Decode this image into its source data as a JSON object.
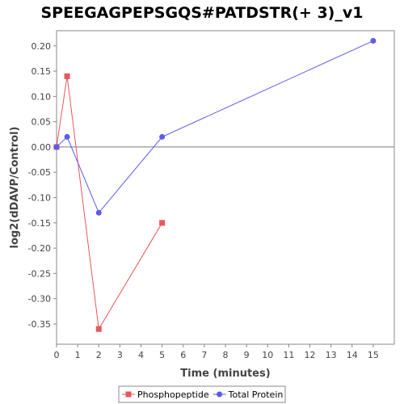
{
  "chart_data": {
    "type": "line",
    "title": "SPEEGAGPEPSGQS#PATDSTR(+ 3)_v1",
    "xlabel": "Time (minutes)",
    "ylabel": "log2(dDAVP/Control)",
    "xlim": [
      0,
      16
    ],
    "ylim": [
      -0.39,
      0.23
    ],
    "xticks": [
      0,
      1,
      2,
      3,
      4,
      5,
      6,
      7,
      8,
      9,
      10,
      11,
      12,
      13,
      14,
      15
    ],
    "yticks": [
      -0.35,
      -0.3,
      -0.25,
      -0.2,
      -0.15,
      -0.1,
      -0.05,
      0.0,
      0.05,
      0.1,
      0.15,
      0.2
    ],
    "ytick_labels": [
      "-0.35",
      "-0.30",
      "-0.25",
      "-0.20",
      "-0.15",
      "-0.10",
      "-0.05",
      "0.00",
      "0.05",
      "0.10",
      "0.15",
      "0.20"
    ],
    "zero_line": true,
    "grid": false,
    "legend_position": "bottom",
    "series": [
      {
        "name": "Phosphopeptide",
        "color": "#e8575b",
        "marker": "square",
        "x": [
          0,
          0.5,
          2,
          5
        ],
        "y": [
          0.0,
          0.14,
          -0.36,
          -0.15
        ]
      },
      {
        "name": "Total Protein",
        "color": "#5b5bec",
        "marker": "circle",
        "x": [
          0,
          0.5,
          2,
          5,
          15
        ],
        "y": [
          0.0,
          0.02,
          -0.13,
          0.02,
          0.21
        ]
      }
    ]
  }
}
